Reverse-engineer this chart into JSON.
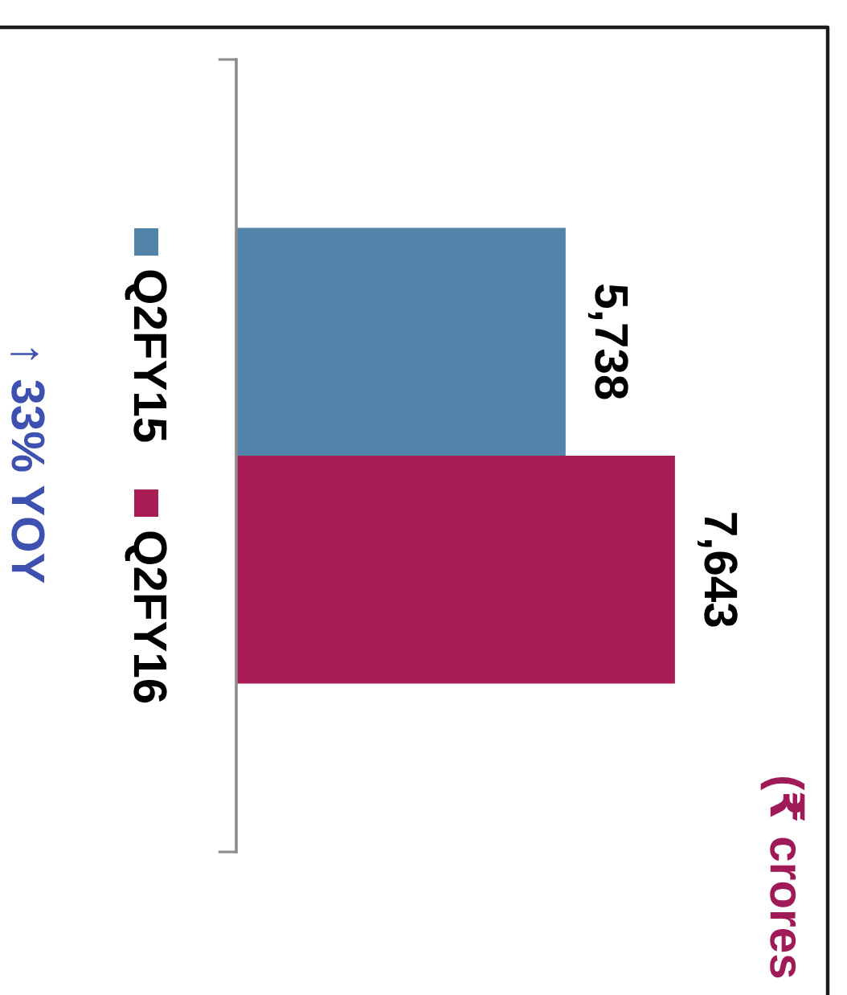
{
  "chart_data": {
    "type": "bar",
    "orientation": "horizontal",
    "categories": [
      null
    ],
    "series": [
      {
        "name": "Q2FY15",
        "color": "#5283a8",
        "values": [
          5738
        ],
        "value_labels": [
          "5,738"
        ]
      },
      {
        "name": "Q2FY16",
        "color": "#aa1c54",
        "values": [
          7643
        ],
        "value_labels": [
          "7,643"
        ]
      }
    ],
    "legend": "left",
    "annotations": [
      "↑ 33% YOY",
      "(₹ crores"
    ]
  }
}
